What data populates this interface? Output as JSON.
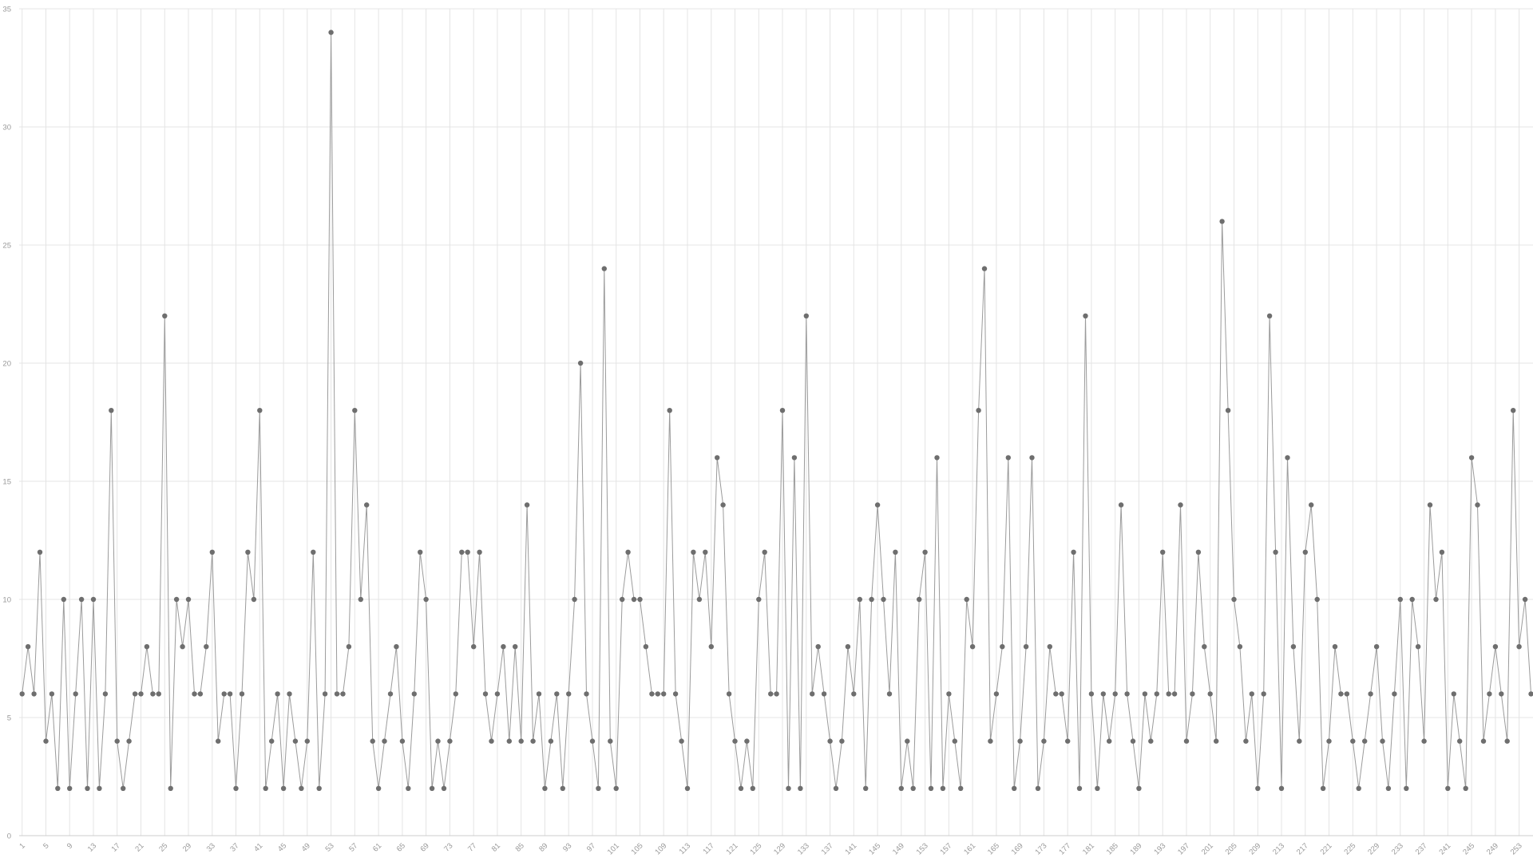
{
  "chart_data": {
    "type": "line",
    "title": "",
    "xlabel": "",
    "ylabel": "",
    "legend": "none",
    "grid": "vertical line at every labeled x tick, horizontal line at every y tick",
    "ylim": [
      0,
      35
    ],
    "y_ticks": [
      0,
      5,
      10,
      15,
      20,
      25,
      30,
      35
    ],
    "x_tick_labels": [
      "1",
      "5",
      "9",
      "13",
      "17",
      "21",
      "25",
      "29",
      "33",
      "37",
      "41",
      "45",
      "49",
      "53",
      "57",
      "61",
      "65",
      "69",
      "73",
      "77",
      "81",
      "85",
      "89",
      "93",
      "97",
      "101",
      "105",
      "109",
      "113",
      "117",
      "121",
      "125",
      "129",
      "133",
      "137",
      "141",
      "145",
      "149",
      "153",
      "157",
      "161",
      "165",
      "169",
      "173",
      "177",
      "181",
      "185",
      "189",
      "193",
      "197",
      "201",
      "205",
      "209",
      "213",
      "217",
      "221",
      "225",
      "229",
      "233",
      "237",
      "241",
      "245",
      "249",
      "253"
    ],
    "x_start": 1,
    "x_step": 1,
    "values": [
      6,
      8,
      6,
      12,
      4,
      6,
      2,
      10,
      2,
      6,
      10,
      2,
      10,
      2,
      6,
      18,
      4,
      2,
      4,
      6,
      6,
      8,
      6,
      6,
      22,
      2,
      10,
      8,
      10,
      6,
      6,
      8,
      12,
      4,
      6,
      6,
      2,
      6,
      12,
      10,
      18,
      2,
      4,
      6,
      2,
      6,
      4,
      2,
      4,
      12,
      2,
      6,
      34,
      6,
      6,
      8,
      18,
      10,
      14,
      4,
      2,
      4,
      6,
      8,
      4,
      2,
      6,
      12,
      10,
      2,
      4,
      2,
      4,
      6,
      12,
      12,
      8,
      12,
      6,
      4,
      6,
      8,
      4,
      8,
      4,
      14,
      4,
      6,
      2,
      4,
      6,
      2,
      6,
      10,
      20,
      6,
      4,
      2,
      24,
      4,
      2,
      10,
      12,
      10,
      10,
      8,
      6,
      6,
      6,
      18,
      6,
      4,
      2,
      12,
      10,
      12,
      8,
      16,
      14,
      6,
      4,
      2,
      4,
      2,
      10,
      12,
      6,
      6,
      18,
      2,
      16,
      2,
      22,
      6,
      8,
      6,
      4,
      2,
      4,
      8,
      6,
      10,
      2,
      10,
      14,
      10,
      6,
      12,
      2,
      4,
      2,
      10,
      12,
      2,
      16,
      2,
      6,
      4,
      2,
      10,
      8,
      18,
      24,
      4,
      6,
      8,
      16,
      2,
      4,
      8,
      16,
      2,
      4,
      8,
      6,
      6,
      4,
      12,
      2,
      22,
      6,
      2,
      6,
      4,
      6,
      14,
      6,
      4,
      2,
      6,
      4,
      6,
      12,
      6,
      6,
      14,
      4,
      6,
      12,
      8,
      6,
      4,
      26,
      18,
      10,
      8,
      4,
      6,
      2,
      6,
      22,
      12,
      2,
      16,
      8,
      4,
      12,
      14,
      10,
      2,
      4,
      8,
      6,
      6,
      4,
      2,
      4,
      6,
      8,
      4,
      2,
      6,
      10,
      2,
      10,
      8,
      4,
      14,
      10,
      12,
      2,
      6,
      4,
      2,
      16,
      14,
      4,
      6,
      8,
      6,
      4,
      18,
      8,
      10,
      6
    ],
    "line_color": "#9b9b9b",
    "marker_color": "#6e6e6e",
    "grid_color": "#e4e4e4",
    "axis_line_color": "#cccccc",
    "label_color": "#999999"
  }
}
